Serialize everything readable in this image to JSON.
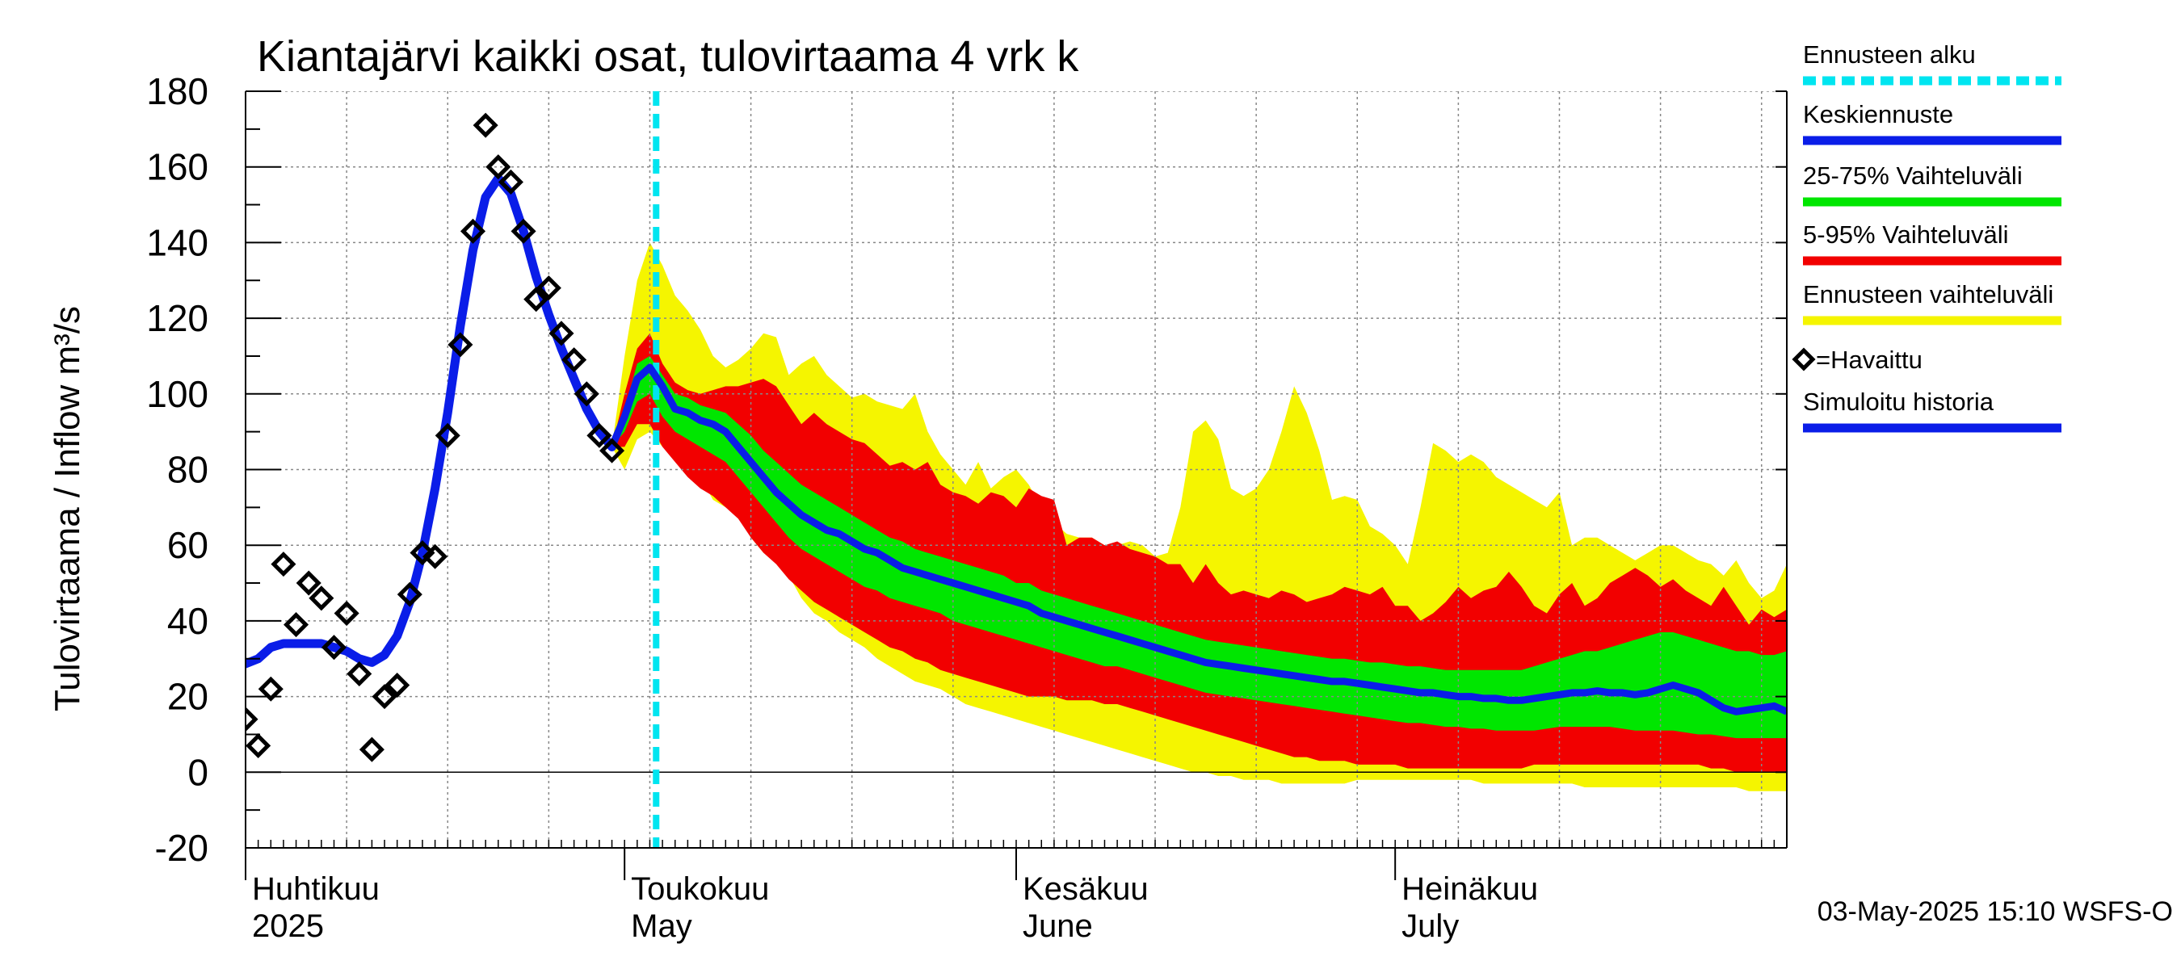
{
  "chart_data": {
    "type": "area",
    "title": "Kiantajärvi kaikki osat, tulovirtaama  4 vrk k",
    "ylabel": "Tulovirtaama / Inflow    m³/s",
    "ylim": [
      -20,
      180
    ],
    "yticks": [
      -20,
      0,
      20,
      40,
      60,
      80,
      100,
      120,
      140,
      160,
      180
    ],
    "x_range_days": [
      0,
      122
    ],
    "month_labels": [
      {
        "day": 0,
        "fi": "Huhtikuu",
        "en": "2025"
      },
      {
        "day": 30,
        "fi": "Toukokuu",
        "en": "May"
      },
      {
        "day": 61,
        "fi": "Kesäkuu",
        "en": "June"
      },
      {
        "day": 91,
        "fi": "Heinäkuu",
        "en": "July"
      }
    ],
    "forecast_start_day": 32.5,
    "timestamp": "03-May-2025 15:10 WSFS-O",
    "legend": {
      "forecast_start": "Ennusteen alku",
      "median": "Keskiennuste",
      "p25_75": "25-75% Vaihteluväli",
      "p5_95": "5-95% Vaihteluväli",
      "range": "Ennusteen vaihteluväli",
      "observed": "=Havaittu",
      "simulated": "Simuloitu historia"
    },
    "colors": {
      "forecast_start": "#00e5f0",
      "median": "#0a1de8",
      "p25_75": "#00e600",
      "p5_95": "#f20000",
      "range": "#f5f500",
      "observed": "#000000",
      "simulated": "#0a1de8",
      "grid": "#888888"
    },
    "observed": [
      {
        "day": 0,
        "value": 14
      },
      {
        "day": 1,
        "value": 7
      },
      {
        "day": 2,
        "value": 22
      },
      {
        "day": 3,
        "value": 55
      },
      {
        "day": 4,
        "value": 39
      },
      {
        "day": 5,
        "value": 50
      },
      {
        "day": 6,
        "value": 46
      },
      {
        "day": 7,
        "value": 33
      },
      {
        "day": 8,
        "value": 42
      },
      {
        "day": 9,
        "value": 26
      },
      {
        "day": 10,
        "value": 6
      },
      {
        "day": 11,
        "value": 20
      },
      {
        "day": 12,
        "value": 23
      },
      {
        "day": 13,
        "value": 47
      },
      {
        "day": 14,
        "value": 58
      },
      {
        "day": 15,
        "value": 57
      },
      {
        "day": 16,
        "value": 89
      },
      {
        "day": 17,
        "value": 113
      },
      {
        "day": 18,
        "value": 143
      },
      {
        "day": 19,
        "value": 171
      },
      {
        "day": 20,
        "value": 160
      },
      {
        "day": 21,
        "value": 156
      },
      {
        "day": 22,
        "value": 143
      },
      {
        "day": 23,
        "value": 125
      },
      {
        "day": 24,
        "value": 128
      },
      {
        "day": 25,
        "value": 116
      },
      {
        "day": 26,
        "value": 109
      },
      {
        "day": 27,
        "value": 100
      },
      {
        "day": 28,
        "value": 89
      },
      {
        "day": 29,
        "value": 85
      }
    ],
    "simulated": [
      {
        "day": -0.5,
        "value": 28
      },
      {
        "day": 1,
        "value": 30
      },
      {
        "day": 2,
        "value": 33
      },
      {
        "day": 3,
        "value": 34
      },
      {
        "day": 4,
        "value": 34
      },
      {
        "day": 5,
        "value": 34
      },
      {
        "day": 6,
        "value": 34
      },
      {
        "day": 7,
        "value": 33
      },
      {
        "day": 8,
        "value": 32
      },
      {
        "day": 9,
        "value": 30
      },
      {
        "day": 10,
        "value": 29
      },
      {
        "day": 11,
        "value": 31
      },
      {
        "day": 12,
        "value": 36
      },
      {
        "day": 13,
        "value": 45
      },
      {
        "day": 14,
        "value": 58
      },
      {
        "day": 15,
        "value": 75
      },
      {
        "day": 16,
        "value": 95
      },
      {
        "day": 17,
        "value": 118
      },
      {
        "day": 18,
        "value": 138
      },
      {
        "day": 19,
        "value": 152
      },
      {
        "day": 20,
        "value": 157
      },
      {
        "day": 21,
        "value": 153
      },
      {
        "day": 22,
        "value": 143
      },
      {
        "day": 23,
        "value": 131
      },
      {
        "day": 24,
        "value": 121
      },
      {
        "day": 25,
        "value": 112
      },
      {
        "day": 26,
        "value": 104
      },
      {
        "day": 27,
        "value": 96
      },
      {
        "day": 28,
        "value": 90
      },
      {
        "day": 29,
        "value": 86
      }
    ],
    "forecast_days": [
      29,
      30,
      31,
      32,
      33,
      34,
      35,
      36,
      37,
      38,
      39,
      40,
      41,
      42,
      43,
      44,
      45,
      46,
      47,
      48,
      49,
      50,
      51,
      52,
      53,
      54,
      55,
      56,
      57,
      58,
      59,
      60,
      61,
      62,
      63,
      64,
      65,
      66,
      67,
      68,
      69,
      70,
      71,
      72,
      73,
      74,
      75,
      76,
      77,
      78,
      79,
      80,
      81,
      82,
      83,
      84,
      85,
      86,
      87,
      88,
      89,
      90,
      91,
      92,
      93,
      94,
      95,
      96,
      97,
      98,
      99,
      100,
      101,
      102,
      103,
      104,
      105,
      106,
      107,
      108,
      109,
      110,
      111,
      112,
      113,
      114,
      115,
      116,
      117,
      118,
      119,
      120,
      121,
      122
    ],
    "forecast": {
      "median": [
        86,
        94,
        104,
        107,
        102,
        96,
        95,
        93,
        92,
        90,
        86,
        82,
        78,
        74,
        71,
        68,
        66,
        64,
        63,
        61,
        59,
        58,
        56,
        54,
        53,
        52,
        51,
        50,
        49,
        48,
        47,
        46,
        45,
        44,
        42,
        41,
        40,
        39,
        38,
        37,
        36,
        35,
        34,
        33,
        32,
        31,
        30,
        29,
        28.5,
        28,
        27.5,
        27,
        26.5,
        26,
        25.5,
        25,
        24.5,
        24,
        24,
        23.5,
        23,
        22.5,
        22,
        21.5,
        21,
        21,
        20.5,
        20,
        20,
        19.5,
        19.5,
        19,
        19,
        19.5,
        20,
        20.5,
        21,
        21,
        21.5,
        21,
        21,
        20.5,
        21,
        22,
        23,
        22,
        21,
        19,
        17,
        16,
        16.5,
        17,
        17.5,
        16
      ],
      "p25": [
        86,
        90,
        98,
        100,
        94,
        90,
        88,
        86,
        84,
        82,
        78,
        74,
        70,
        66,
        62,
        59,
        57,
        55,
        53,
        51,
        49,
        48,
        46,
        45,
        44,
        43,
        42,
        40,
        39,
        38,
        37,
        36,
        35,
        34,
        33,
        32,
        31,
        30,
        29,
        28,
        28,
        27,
        26,
        25,
        24,
        23,
        22,
        21,
        20.5,
        20,
        19.5,
        19,
        18.5,
        18,
        17.5,
        17,
        16.5,
        16,
        15.5,
        15,
        14.5,
        14,
        13.5,
        13,
        13,
        12.5,
        12,
        12,
        11.5,
        11.5,
        11,
        11,
        11,
        11,
        11.5,
        12,
        12,
        12,
        12,
        12,
        11.5,
        11,
        11,
        11,
        11,
        10.5,
        10,
        10,
        9.5,
        9,
        9,
        9,
        9,
        9
      ],
      "p75": [
        86,
        96,
        108,
        110,
        105,
        100,
        99,
        97,
        96,
        95,
        92,
        89,
        85,
        82,
        79,
        76,
        74,
        72,
        70,
        68,
        66,
        64,
        62,
        61,
        59,
        58,
        57,
        56,
        55,
        54,
        53,
        52,
        50,
        50,
        48,
        47,
        46,
        45,
        44,
        43,
        42,
        41,
        40,
        39,
        38,
        37,
        36,
        35,
        34.5,
        34,
        33.5,
        33,
        32.5,
        32,
        31.5,
        31,
        30.5,
        30,
        30,
        29.5,
        29,
        29,
        28.5,
        28,
        28,
        27.5,
        27,
        27,
        27,
        27,
        27,
        27,
        27,
        28,
        29,
        30,
        31,
        32,
        32,
        33,
        34,
        35,
        36,
        37,
        37,
        36,
        35,
        34,
        33,
        32,
        32,
        31,
        31,
        32
      ],
      "p5": [
        86,
        86,
        92,
        92,
        86,
        82,
        78,
        75,
        73,
        70,
        67,
        62,
        58,
        55,
        51,
        48,
        45,
        43,
        41,
        39,
        37,
        35,
        33,
        32,
        30,
        29,
        27,
        26,
        25,
        24,
        23,
        22,
        21,
        20,
        20,
        20,
        19,
        19,
        19,
        18,
        18,
        17,
        16,
        15,
        14,
        13,
        12,
        11,
        10,
        9,
        8,
        7,
        6,
        5,
        4,
        4,
        3,
        3,
        3,
        2,
        2,
        2,
        2,
        1,
        1,
        1,
        1,
        1,
        1,
        1,
        1,
        1,
        1,
        2,
        2,
        2,
        2,
        2,
        2,
        2,
        2,
        2,
        2,
        2,
        2,
        2,
        2,
        1,
        1,
        0,
        0,
        0,
        0,
        0
      ],
      "p95": [
        86,
        100,
        112,
        116,
        108,
        103,
        101,
        100,
        101,
        102,
        102,
        103,
        104,
        102,
        97,
        92,
        95,
        92,
        90,
        88,
        87,
        84,
        81,
        82,
        80,
        82,
        76,
        74,
        73,
        71,
        74,
        73,
        70,
        75,
        73,
        72,
        60,
        62,
        62,
        60,
        61,
        59,
        58,
        57,
        55,
        55,
        50,
        55,
        50,
        47,
        48,
        47,
        46,
        48,
        47,
        45,
        46,
        47,
        49,
        48,
        47,
        49,
        44,
        44,
        40,
        42,
        45,
        49,
        46,
        48,
        49,
        53,
        49,
        44,
        42,
        47,
        50,
        44,
        46,
        50,
        52,
        54,
        52,
        49,
        51,
        48,
        46,
        44,
        49,
        44,
        39,
        43,
        41,
        43
      ],
      "min": [
        86,
        80,
        88,
        90,
        86,
        84,
        80,
        78,
        72,
        70,
        68,
        62,
        58,
        56,
        52,
        46,
        42,
        40,
        37,
        35,
        33,
        30,
        28,
        26,
        24,
        23,
        22,
        20,
        18,
        17,
        16,
        15,
        14,
        13,
        12,
        11,
        10,
        9,
        8,
        7,
        6,
        5,
        4,
        3,
        2,
        1,
        0,
        0,
        -1,
        -1,
        -2,
        -2,
        -2,
        -3,
        -3,
        -3,
        -3,
        -3,
        -3,
        -2,
        -2,
        -2,
        -2,
        -2,
        -2,
        -2,
        -2,
        -2,
        -2,
        -3,
        -3,
        -3,
        -3,
        -3,
        -3,
        -3,
        -3,
        -4,
        -4,
        -4,
        -4,
        -4,
        -4,
        -4,
        -4,
        -4,
        -4,
        -4,
        -4,
        -4,
        -5,
        -5,
        -5,
        -5
      ],
      "max": [
        86,
        110,
        130,
        140,
        134,
        126,
        122,
        117,
        110,
        107,
        109,
        112,
        116,
        115,
        105,
        108,
        110,
        105,
        102,
        99,
        100,
        98,
        97,
        96,
        100,
        90,
        84,
        80,
        76,
        82,
        75,
        78,
        80,
        76,
        70,
        66,
        63,
        62,
        62,
        60,
        60,
        61,
        60,
        57,
        58,
        70,
        90,
        93,
        88,
        75,
        73,
        75,
        80,
        90,
        102,
        95,
        85,
        72,
        73,
        72,
        65,
        63,
        60,
        55,
        70,
        87,
        85,
        82,
        84,
        82,
        78,
        76,
        74,
        72,
        70,
        74,
        60,
        62,
        62,
        60,
        58,
        56,
        58,
        60,
        60,
        58,
        56,
        55,
        52,
        56,
        50,
        46,
        48,
        55
      ]
    }
  }
}
